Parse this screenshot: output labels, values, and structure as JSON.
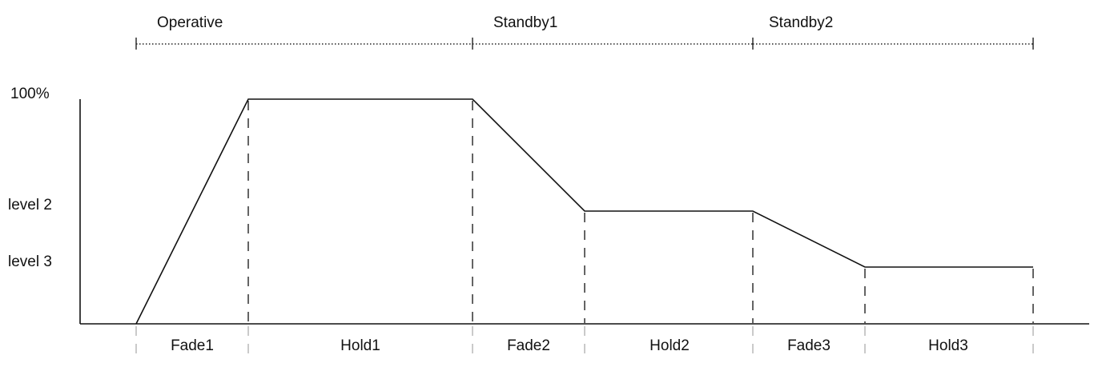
{
  "phases": [
    {
      "label": "Operative"
    },
    {
      "label": "Standby1"
    },
    {
      "label": "Standby2"
    }
  ],
  "levels": {
    "full": "100%",
    "level2": "level 2",
    "level3": "level 3"
  },
  "segments": [
    {
      "label": "Fade1"
    },
    {
      "label": "Hold1"
    },
    {
      "label": "Fade2"
    },
    {
      "label": "Hold2"
    },
    {
      "label": "Fade3"
    },
    {
      "label": "Hold3"
    }
  ]
}
